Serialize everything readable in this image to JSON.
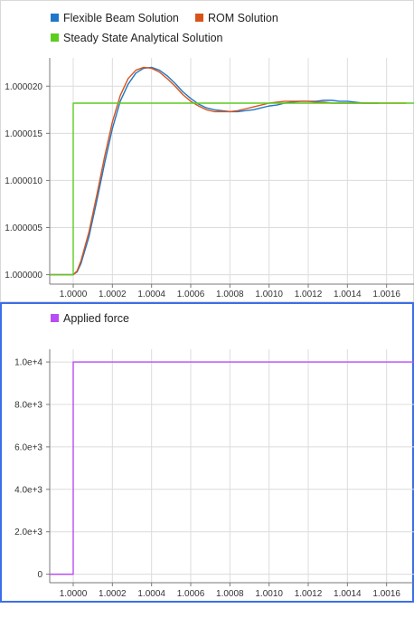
{
  "colors": {
    "flexible_beam": "#1f77c8",
    "rom": "#d95319",
    "steady_state": "#5ccc1e",
    "applied_force": "#b84cf5",
    "panel_border_active": "#3b6ee8",
    "grid": "#dcdcdc",
    "axis": "#7a7a7a"
  },
  "chart_data": [
    {
      "type": "line",
      "title": "",
      "xlabel": "",
      "ylabel": "",
      "xlim": [
        0.99988,
        1.00174
      ],
      "ylim": [
        0.999999,
        1.000023
      ],
      "grid": true,
      "legend": "top-left",
      "xticks": [
        1.0,
        1.0002,
        1.0004,
        1.0006,
        1.0008,
        1.001,
        1.0012,
        1.0014,
        1.0016
      ],
      "xtick_labels": [
        "1.0000",
        "1.0002",
        "1.0004",
        "1.0006",
        "1.0008",
        "1.0010",
        "1.0012",
        "1.0014",
        "1.0016"
      ],
      "yticks": [
        1.0,
        1.000005,
        1.00001,
        1.000015,
        1.00002
      ],
      "ytick_labels": [
        "1.000000",
        "1.000005",
        "1.000010",
        "1.000015",
        "1.000020"
      ],
      "series": [
        {
          "name": "Flexible Beam Solution",
          "color": "#1f77c8",
          "x": [
            0.99988,
            1.0,
            1.00002,
            1.00004,
            1.00008,
            1.00012,
            1.00016,
            1.0002,
            1.00024,
            1.00028,
            1.00032,
            1.00036,
            1.0004,
            1.00044,
            1.00048,
            1.00052,
            1.00056,
            1.0006,
            1.00064,
            1.00068,
            1.00072,
            1.00076,
            1.0008,
            1.00084,
            1.00088,
            1.00092,
            1.00096,
            1.001,
            1.00104,
            1.00108,
            1.00112,
            1.00116,
            1.0012,
            1.00124,
            1.00128,
            1.00132,
            1.00136,
            1.0014,
            1.00144,
            1.00148,
            1.00152,
            1.00156
          ],
          "y": [
            1.0,
            1.0,
            1.0000003,
            1.0000012,
            1.000004,
            1.0000078,
            1.0000118,
            1.0000155,
            1.0000184,
            1.0000202,
            1.0000214,
            1.0000219,
            1.000022,
            1.0000217,
            1.0000211,
            1.0000203,
            1.0000194,
            1.0000187,
            1.0000181,
            1.0000177,
            1.0000175,
            1.0000174,
            1.0000173,
            1.0000173,
            1.0000174,
            1.0000175,
            1.0000177,
            1.0000179,
            1.000018,
            1.0000182,
            1.0000183,
            1.0000184,
            1.0000184,
            1.0000184,
            1.0000185,
            1.0000185,
            1.0000184,
            1.0000184,
            1.0000183,
            1.0000182,
            1.0000182,
            1.0000182
          ]
        },
        {
          "name": "ROM Solution",
          "color": "#d95319",
          "x": [
            0.99988,
            1.0,
            1.00002,
            1.00004,
            1.00008,
            1.00012,
            1.00016,
            1.0002,
            1.00024,
            1.00028,
            1.00032,
            1.00036,
            1.0004,
            1.00044,
            1.00048,
            1.00052,
            1.00056,
            1.0006,
            1.00064,
            1.00068,
            1.00072,
            1.00076,
            1.0008,
            1.00084,
            1.00088,
            1.00092,
            1.00096,
            1.001,
            1.00104,
            1.00108,
            1.00112,
            1.00116,
            1.0012,
            1.00124,
            1.00128,
            1.00132,
            1.00136,
            1.0014,
            1.00144,
            1.00148,
            1.00152,
            1.00156,
            1.0016,
            1.0017
          ],
          "y": [
            1.0,
            1.0,
            1.0000004,
            1.0000015,
            1.0000045,
            1.0000084,
            1.0000125,
            1.0000162,
            1.000019,
            1.0000208,
            1.0000217,
            1.000022,
            1.0000219,
            1.0000215,
            1.0000208,
            1.00002,
            1.0000191,
            1.0000184,
            1.0000179,
            1.0000175,
            1.0000173,
            1.0000173,
            1.0000173,
            1.0000174,
            1.0000176,
            1.0000178,
            1.000018,
            1.0000182,
            1.0000183,
            1.0000184,
            1.0000184,
            1.0000184,
            1.0000184,
            1.0000183,
            1.0000183,
            1.0000182,
            1.0000182,
            1.0000182,
            1.0000182,
            1.0000182,
            1.0000182,
            1.0000182,
            1.0000182,
            1.0000182
          ]
        },
        {
          "name": "Steady State Analytical Solution",
          "color": "#5ccc1e",
          "x": [
            0.99988,
            1.0,
            1.0,
            1.00174
          ],
          "y": [
            1.0,
            1.0,
            1.0000182,
            1.0000182
          ]
        }
      ]
    },
    {
      "type": "line",
      "title": "",
      "xlabel": "",
      "ylabel": "",
      "xlim": [
        0.99988,
        1.00174
      ],
      "ylim": [
        -400,
        10600
      ],
      "grid": true,
      "legend": "top-left",
      "xticks": [
        1.0,
        1.0002,
        1.0004,
        1.0006,
        1.0008,
        1.001,
        1.0012,
        1.0014,
        1.0016
      ],
      "xtick_labels": [
        "1.0000",
        "1.0002",
        "1.0004",
        "1.0006",
        "1.0008",
        "1.0010",
        "1.0012",
        "1.0014",
        "1.0016"
      ],
      "yticks": [
        0,
        2000,
        4000,
        6000,
        8000,
        10000
      ],
      "ytick_labels": [
        "0",
        "2.0e+3",
        "4.0e+3",
        "6.0e+3",
        "8.0e+3",
        "1.0e+4"
      ],
      "series": [
        {
          "name": "Applied force",
          "color": "#b84cf5",
          "x": [
            0.99988,
            1.0,
            1.0,
            1.00174
          ],
          "y": [
            0,
            0,
            10000,
            10000
          ]
        }
      ]
    }
  ]
}
